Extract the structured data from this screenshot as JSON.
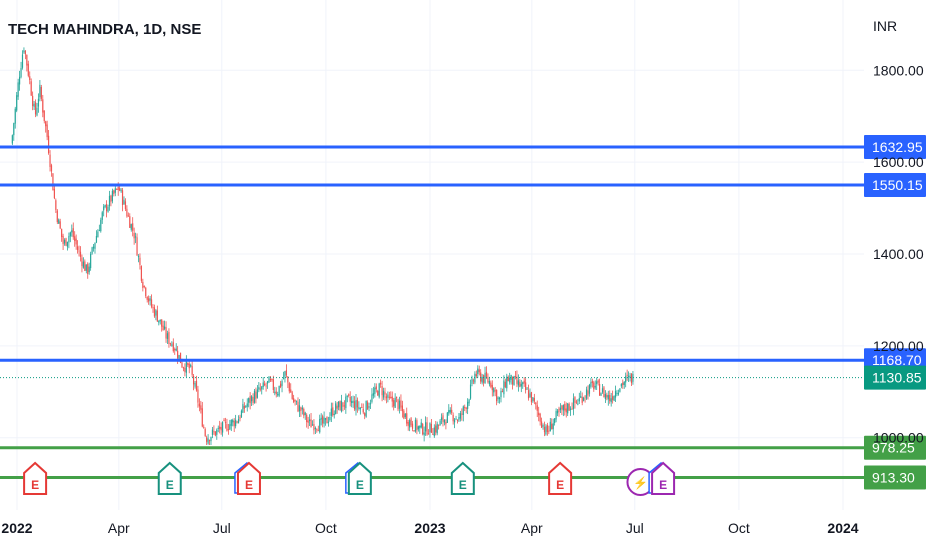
{
  "header": {
    "title": "TECH MAHINDRA, 1D, NSE",
    "currency": "INR"
  },
  "colors": {
    "up": "#26a69a",
    "down": "#ef5350",
    "resistance": "#2962ff",
    "support": "#43a047",
    "last": "#089981",
    "grid": "#f0f3fa",
    "earnings_red": "#e53935",
    "earnings_green": "#17917e",
    "split_purple": "#9c27b0"
  },
  "chart_data": {
    "type": "candlestick",
    "title": "TECH MAHINDRA, 1D, NSE",
    "ylabel": "INR",
    "ylim": [
      900,
      1880
    ],
    "y_ticks": [
      "1800.00",
      "1600.00",
      "1400.00",
      "1200.00",
      "1000.00"
    ],
    "x_ticks": [
      {
        "label": "2022",
        "bold": true
      },
      {
        "label": "Apr"
      },
      {
        "label": "Jul"
      },
      {
        "label": "Oct"
      },
      {
        "label": "2023",
        "bold": true
      },
      {
        "label": "Apr"
      },
      {
        "label": "Jul"
      },
      {
        "label": "Oct"
      },
      {
        "label": "2024",
        "bold": true
      }
    ],
    "horizontal_levels": [
      {
        "value": 1632.95,
        "label": "1632.95",
        "kind": "resistance"
      },
      {
        "value": 1550.15,
        "label": "1550.15",
        "kind": "resistance"
      },
      {
        "value": 1168.7,
        "label": "1168.70",
        "kind": "resistance"
      },
      {
        "value": 1130.85,
        "label": "1130.85",
        "kind": "last"
      },
      {
        "value": 978.25,
        "label": "978.25",
        "kind": "support"
      },
      {
        "value": 913.3,
        "label": "913.30",
        "kind": "support"
      }
    ],
    "close_path": [
      [
        "2021-12-27",
        1640
      ],
      [
        "2022-01-03",
        1790
      ],
      [
        "2022-01-07",
        1855
      ],
      [
        "2022-01-12",
        1780
      ],
      [
        "2022-01-17",
        1700
      ],
      [
        "2022-01-21",
        1760
      ],
      [
        "2022-01-28",
        1650
      ],
      [
        "2022-02-04",
        1500
      ],
      [
        "2022-02-11",
        1420
      ],
      [
        "2022-02-18",
        1450
      ],
      [
        "2022-02-25",
        1400
      ],
      [
        "2022-03-04",
        1360
      ],
      [
        "2022-03-11",
        1430
      ],
      [
        "2022-03-18",
        1490
      ],
      [
        "2022-03-25",
        1520
      ],
      [
        "2022-04-01",
        1545
      ],
      [
        "2022-04-08",
        1490
      ],
      [
        "2022-04-15",
        1440
      ],
      [
        "2022-04-22",
        1340
      ],
      [
        "2022-04-29",
        1290
      ],
      [
        "2022-05-06",
        1260
      ],
      [
        "2022-05-13",
        1220
      ],
      [
        "2022-05-20",
        1200
      ],
      [
        "2022-05-27",
        1160
      ],
      [
        "2022-06-03",
        1150
      ],
      [
        "2022-06-10",
        1080
      ],
      [
        "2022-06-17",
        1000
      ],
      [
        "2022-06-24",
        1010
      ],
      [
        "2022-07-01",
        1020
      ],
      [
        "2022-07-08",
        1030
      ],
      [
        "2022-07-15",
        1040
      ],
      [
        "2022-07-22",
        1070
      ],
      [
        "2022-07-29",
        1090
      ],
      [
        "2022-08-05",
        1105
      ],
      [
        "2022-08-12",
        1120
      ],
      [
        "2022-08-19",
        1100
      ],
      [
        "2022-08-26",
        1140
      ],
      [
        "2022-09-02",
        1080
      ],
      [
        "2022-09-09",
        1060
      ],
      [
        "2022-09-16",
        1030
      ],
      [
        "2022-09-23",
        1030
      ],
      [
        "2022-09-30",
        1030
      ],
      [
        "2022-10-07",
        1060
      ],
      [
        "2022-10-14",
        1070
      ],
      [
        "2022-10-21",
        1080
      ],
      [
        "2022-10-28",
        1070
      ],
      [
        "2022-11-04",
        1060
      ],
      [
        "2022-11-11",
        1090
      ],
      [
        "2022-11-18",
        1110
      ],
      [
        "2022-11-25",
        1080
      ],
      [
        "2022-12-02",
        1080
      ],
      [
        "2022-12-09",
        1050
      ],
      [
        "2022-12-16",
        1030
      ],
      [
        "2022-12-23",
        1020
      ],
      [
        "2022-12-30",
        1020
      ],
      [
        "2023-01-06",
        1020
      ],
      [
        "2023-01-13",
        1040
      ],
      [
        "2023-01-20",
        1050
      ],
      [
        "2023-01-27",
        1040
      ],
      [
        "2023-02-03",
        1080
      ],
      [
        "2023-02-10",
        1140
      ],
      [
        "2023-02-17",
        1130
      ],
      [
        "2023-02-24",
        1120
      ],
      [
        "2023-03-03",
        1080
      ],
      [
        "2023-03-10",
        1130
      ],
      [
        "2023-03-17",
        1120
      ],
      [
        "2023-03-24",
        1110
      ],
      [
        "2023-03-31",
        1090
      ],
      [
        "2023-04-07",
        1050
      ],
      [
        "2023-04-14",
        1010
      ],
      [
        "2023-04-21",
        1040
      ],
      [
        "2023-04-28",
        1060
      ],
      [
        "2023-05-05",
        1070
      ],
      [
        "2023-05-12",
        1080
      ],
      [
        "2023-05-19",
        1100
      ],
      [
        "2023-05-26",
        1115
      ],
      [
        "2023-06-02",
        1100
      ],
      [
        "2023-06-09",
        1085
      ],
      [
        "2023-06-16",
        1110
      ],
      [
        "2023-06-23",
        1125
      ],
      [
        "2023-06-30",
        1130.85
      ]
    ],
    "events": [
      {
        "type": "earnings",
        "letter": "E",
        "date": "2022-01-17",
        "color": "earnings_red"
      },
      {
        "type": "earnings",
        "letter": "E",
        "date": "2022-05-16",
        "color": "earnings_green"
      },
      {
        "type": "earnings",
        "letter": "E",
        "date": "2022-07-25",
        "color": "earnings_red",
        "stacked": true
      },
      {
        "type": "earnings",
        "letter": "E",
        "date": "2022-10-31",
        "color": "earnings_green",
        "stacked": true
      },
      {
        "type": "earnings",
        "letter": "E",
        "date": "2023-01-30",
        "color": "earnings_green"
      },
      {
        "type": "earnings",
        "letter": "E",
        "date": "2023-04-26",
        "color": "earnings_red"
      },
      {
        "type": "split",
        "letter": "⚡",
        "date": "2023-07-06",
        "color": "split_purple"
      },
      {
        "type": "earnings",
        "letter": "E",
        "date": "2023-07-26",
        "color": "split_purple",
        "stacked": true
      }
    ]
  }
}
